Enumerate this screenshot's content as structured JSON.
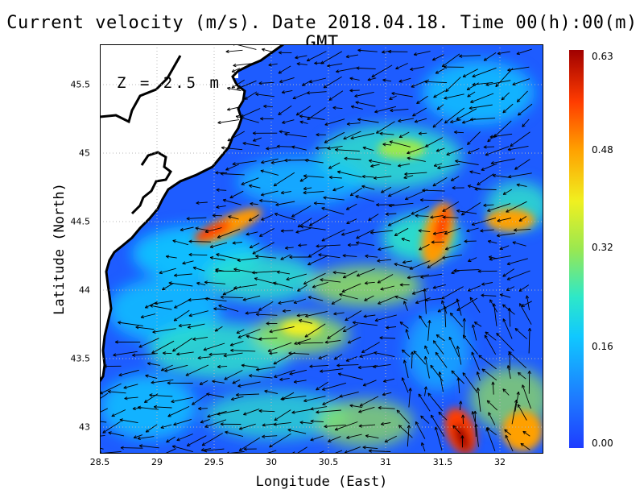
{
  "title": "Current velocity (m/s). Date 2018.04.18. Time 00(h):00(m) GMT",
  "depth_label": "Z  =  2.5  m",
  "x_axis": {
    "label": "Longitude (East)",
    "ticks": [
      "28.5",
      "29",
      "29.5",
      "30",
      "30.5",
      "31",
      "31.5",
      "32"
    ]
  },
  "y_axis": {
    "label": "Latitude (North)",
    "ticks": [
      "45.5",
      "45",
      "44.5",
      "44",
      "43.5",
      "43"
    ]
  },
  "colorbar": {
    "ticks": [
      "0.63",
      "0.48",
      "0.32",
      "0.16",
      "0.00"
    ],
    "range": [
      0.0,
      0.63
    ]
  },
  "map": {
    "lon_range": [
      28.5,
      32.4
    ],
    "lat_range": [
      42.8,
      45.8
    ],
    "land_color": "#ffffff",
    "low_speed_color": "#1e5cff",
    "high_speed_color": "#a00000"
  }
}
